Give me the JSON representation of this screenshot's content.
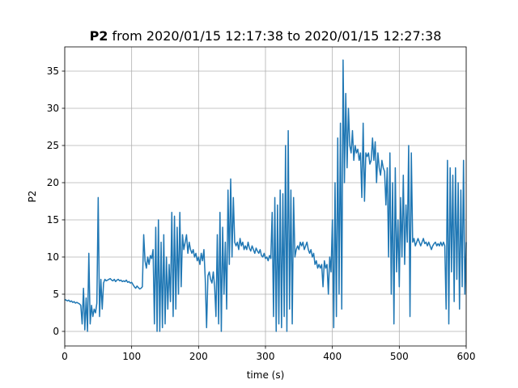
{
  "chart_data": {
    "type": "line",
    "title_bold": "P2",
    "title": "from 2020/01/15 12:17:38 to 2020/01/15 12:27:38",
    "xlabel": "time (s)",
    "ylabel": "P2",
    "xlim": [
      0,
      600
    ],
    "xticks": [
      0,
      100,
      200,
      300,
      400,
      500,
      600
    ],
    "ylim": [
      -1.96,
      38.26
    ],
    "yticks": [
      0,
      5,
      10,
      15,
      20,
      25,
      30,
      35
    ],
    "grid": true,
    "x": [
      0,
      2,
      4,
      6,
      8,
      10,
      12,
      14,
      16,
      18,
      20,
      22,
      24,
      26,
      28,
      30,
      32,
      34,
      36,
      38,
      40,
      42,
      44,
      46,
      48,
      50,
      52,
      54,
      56,
      58,
      60,
      62,
      64,
      66,
      68,
      70,
      72,
      74,
      76,
      78,
      80,
      82,
      84,
      86,
      88,
      90,
      92,
      94,
      96,
      98,
      100,
      102,
      104,
      106,
      108,
      110,
      112,
      114,
      116,
      118,
      120,
      122,
      124,
      126,
      128,
      130,
      132,
      134,
      136,
      138,
      140,
      142,
      144,
      146,
      148,
      150,
      152,
      154,
      156,
      158,
      160,
      162,
      164,
      166,
      168,
      170,
      172,
      174,
      176,
      178,
      180,
      182,
      184,
      186,
      188,
      190,
      192,
      194,
      196,
      198,
      200,
      202,
      204,
      206,
      208,
      210,
      212,
      214,
      216,
      218,
      220,
      222,
      224,
      226,
      228,
      230,
      232,
      234,
      236,
      238,
      240,
      242,
      244,
      246,
      248,
      250,
      252,
      254,
      256,
      258,
      260,
      262,
      264,
      266,
      268,
      270,
      272,
      274,
      276,
      278,
      280,
      282,
      284,
      286,
      288,
      290,
      292,
      294,
      296,
      298,
      300,
      302,
      304,
      306,
      308,
      310,
      312,
      314,
      316,
      318,
      320,
      322,
      324,
      326,
      328,
      330,
      332,
      334,
      336,
      338,
      340,
      342,
      344,
      346,
      348,
      350,
      352,
      354,
      356,
      358,
      360,
      362,
      364,
      366,
      368,
      370,
      372,
      374,
      376,
      378,
      380,
      382,
      384,
      386,
      388,
      390,
      392,
      394,
      396,
      398,
      400,
      402,
      404,
      406,
      408,
      410,
      412,
      414,
      416,
      418,
      420,
      422,
      424,
      426,
      428,
      430,
      432,
      434,
      436,
      438,
      440,
      442,
      444,
      446,
      448,
      450,
      452,
      454,
      456,
      458,
      460,
      462,
      464,
      466,
      468,
      470,
      472,
      474,
      476,
      478,
      480,
      482,
      484,
      486,
      488,
      490,
      492,
      494,
      496,
      498,
      500,
      502,
      504,
      506,
      508,
      510,
      512,
      514,
      516,
      518,
      520,
      522,
      524,
      526,
      528,
      530,
      532,
      534,
      536,
      538,
      540,
      542,
      544,
      546,
      548,
      550,
      552,
      554,
      556,
      558,
      560,
      562,
      564,
      566,
      568,
      570,
      572,
      574,
      576,
      578,
      580,
      582,
      584,
      586,
      588,
      590,
      592,
      594,
      596,
      598,
      600
    ],
    "series": [
      {
        "name": "P2",
        "color": "#1f77b4",
        "values": [
          4.3,
          4.2,
          4.1,
          4.2,
          4.0,
          4.1,
          3.9,
          4.0,
          3.8,
          3.9,
          3.8,
          3.7,
          3.5,
          1.0,
          5.8,
          0.2,
          4.5,
          0.0,
          10.5,
          1.0,
          3.5,
          2.0,
          3.0,
          2.5,
          3.8,
          18.0,
          2.0,
          7.0,
          3.0,
          6.5,
          7.0,
          6.8,
          6.9,
          7.0,
          7.1,
          6.9,
          6.8,
          7.0,
          6.7,
          6.9,
          7.0,
          6.8,
          6.9,
          6.7,
          6.8,
          6.7,
          6.9,
          6.6,
          6.7,
          6.5,
          6.6,
          6.3,
          6.0,
          5.8,
          6.1,
          5.9,
          5.7,
          5.8,
          6.0,
          13.0,
          9.5,
          8.5,
          10.0,
          9.0,
          10.2,
          9.8,
          11.0,
          1.0,
          14.0,
          0.0,
          15.0,
          0.0,
          12.0,
          0.5,
          13.0,
          1.0,
          10.0,
          3.0,
          9.0,
          4.0,
          16.0,
          2.0,
          15.5,
          3.0,
          14.0,
          5.0,
          16.0,
          6.0,
          13.0,
          11.0,
          12.0,
          13.0,
          10.5,
          12.0,
          11.0,
          10.5,
          11.0,
          10.0,
          10.5,
          9.5,
          10.0,
          9.0,
          10.5,
          9.5,
          11.0,
          7.0,
          0.5,
          7.5,
          8.0,
          7.0,
          6.5,
          8.0,
          6.0,
          2.0,
          13.0,
          1.0,
          16.0,
          0.0,
          14.0,
          5.0,
          12.0,
          3.0,
          19.0,
          9.0,
          20.5,
          10.0,
          18.0,
          12.0,
          11.5,
          12.0,
          11.0,
          12.5,
          11.5,
          12.0,
          11.0,
          11.5,
          11.0,
          12.0,
          11.2,
          10.8,
          11.5,
          11.0,
          10.5,
          11.2,
          10.8,
          10.5,
          11.0,
          10.2,
          10.0,
          10.5,
          9.8,
          10.0,
          9.5,
          10.2,
          9.8,
          16.0,
          2.0,
          18.0,
          0.0,
          17.0,
          1.0,
          19.0,
          0.5,
          18.5,
          2.0,
          25.0,
          0.0,
          27.0,
          3.0,
          19.0,
          1.0,
          18.0,
          10.0,
          11.0,
          11.5,
          11.0,
          12.0,
          11.5,
          12.0,
          11.0,
          11.5,
          12.0,
          11.0,
          10.5,
          11.0,
          10.0,
          10.5,
          9.0,
          9.5,
          8.5,
          9.0,
          8.5,
          9.0,
          6.0,
          9.5,
          8.5,
          9.0,
          5.0,
          10.0,
          8.0,
          15.0,
          0.5,
          20.0,
          2.0,
          26.0,
          5.0,
          28.0,
          3.0,
          36.5,
          20.0,
          32.0,
          22.0,
          30.0,
          25.0,
          24.0,
          27.0,
          23.0,
          25.0,
          24.0,
          24.5,
          23.0,
          24.0,
          18.0,
          28.0,
          17.5,
          24.0,
          23.5,
          24.0,
          22.5,
          23.0,
          26.0,
          23.0,
          25.5,
          20.0,
          24.0,
          22.0,
          21.0,
          23.0,
          22.0,
          21.5,
          17.0,
          22.0,
          10.0,
          24.0,
          5.0,
          20.0,
          1.0,
          22.0,
          8.0,
          15.0,
          6.0,
          18.0,
          10.0,
          21.0,
          9.0,
          17.0,
          12.0,
          25.0,
          2.0,
          24.0,
          12.0,
          12.5,
          11.5,
          12.0,
          12.5,
          12.0,
          11.5,
          12.0,
          12.5,
          11.8,
          12.0,
          11.5,
          12.0,
          11.5,
          11.0,
          11.5,
          11.8,
          12.0,
          11.5,
          11.8,
          11.5,
          12.0,
          11.5,
          12.0,
          11.5,
          3.0,
          23.0,
          1.0,
          22.0,
          8.0,
          21.0,
          4.0,
          22.0,
          7.0,
          20.0,
          3.0,
          19.0,
          6.0,
          23.0,
          5.0,
          12.0
        ]
      }
    ]
  }
}
